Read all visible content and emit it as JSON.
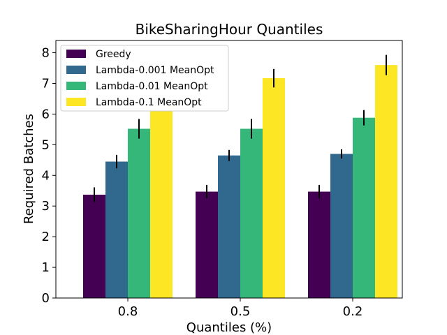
{
  "chart_data": {
    "type": "bar",
    "title": "BikeSharingHour Quantiles",
    "xlabel": "Quantiles (%)",
    "ylabel": "Required Batches",
    "categories": [
      "0.8",
      "0.5",
      "0.2"
    ],
    "ylim": [
      0,
      8.4
    ],
    "yticks": [
      "0",
      "1",
      "2",
      "3",
      "4",
      "5",
      "6",
      "7",
      "8"
    ],
    "grid": false,
    "legend_position": "top-left",
    "series": [
      {
        "name": "Greedy",
        "color": "#440154",
        "values": [
          3.37,
          3.47,
          3.47
        ],
        "errors": [
          0.24,
          0.22,
          0.22
        ]
      },
      {
        "name": "Lambda-0.001 MeanOpt",
        "color": "#31688e",
        "values": [
          4.45,
          4.65,
          4.7
        ],
        "errors": [
          0.22,
          0.18,
          0.15
        ]
      },
      {
        "name": "Lambda-0.01 MeanOpt",
        "color": "#35b779",
        "values": [
          5.52,
          5.52,
          5.88
        ],
        "errors": [
          0.32,
          0.32,
          0.25
        ]
      },
      {
        "name": "Lambda-0.1 MeanOpt",
        "color": "#fde725",
        "values": [
          6.8,
          7.17,
          7.6
        ],
        "errors": [
          0.35,
          0.3,
          0.33
        ]
      }
    ]
  }
}
